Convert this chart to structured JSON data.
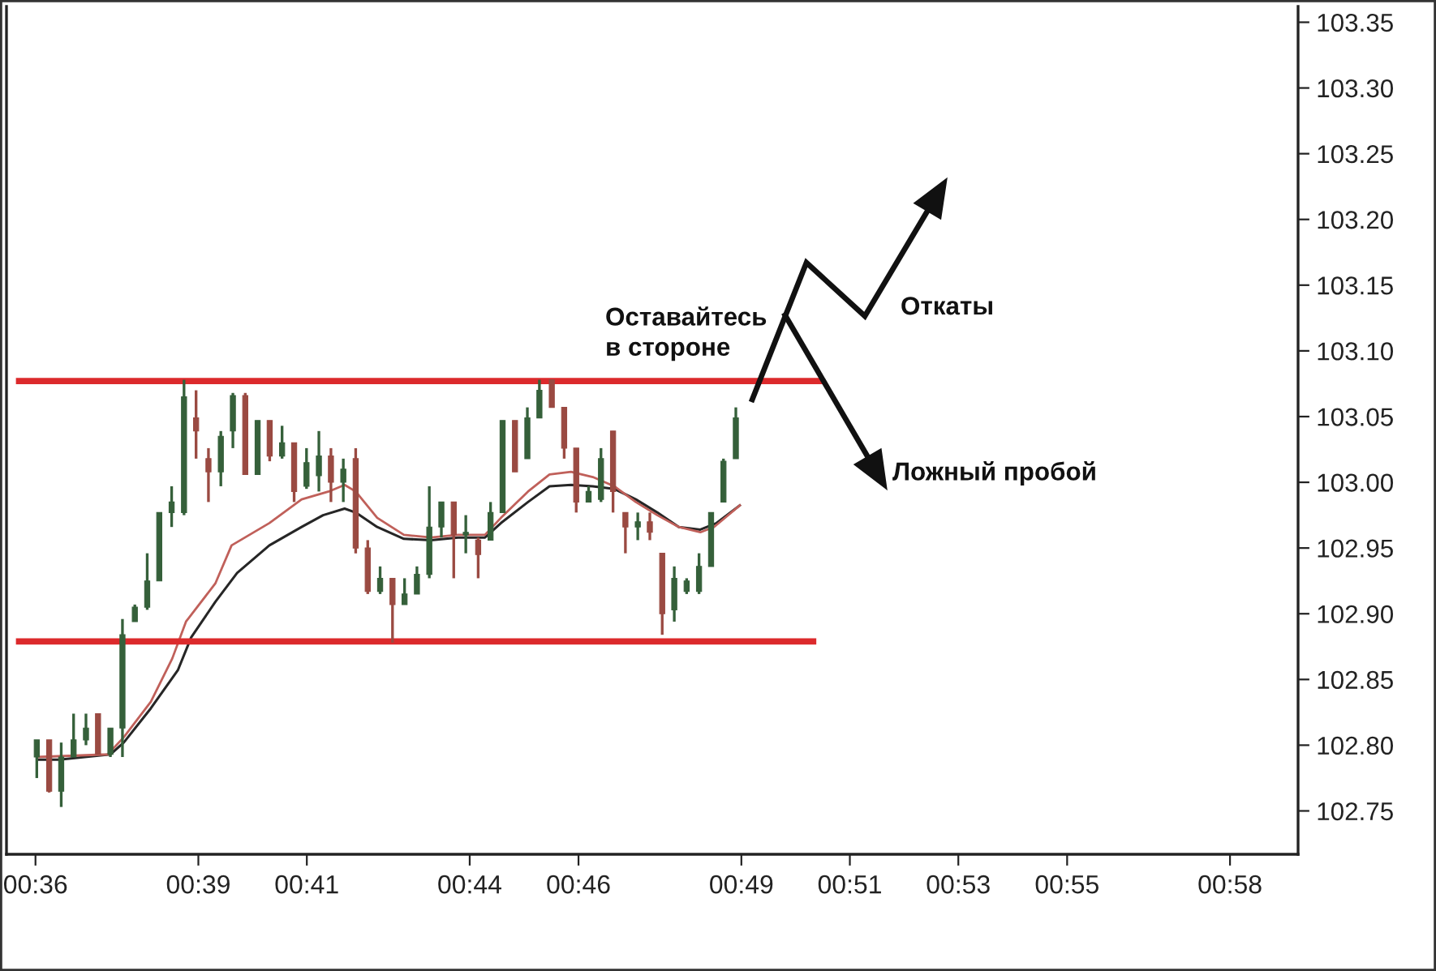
{
  "chart_data": {
    "type": "candlestick",
    "x": [
      0.6004,
      0.6042,
      0.6079,
      0.6117,
      0.6155,
      0.6192,
      0.623,
      0.6267,
      0.6305,
      0.6343,
      0.638,
      0.6418,
      0.6456,
      0.6493,
      0.6531,
      0.6569,
      0.6606,
      0.6644,
      0.6682,
      0.6719,
      0.6757,
      0.6794,
      0.6832,
      0.687,
      0.6907,
      0.6945,
      0.6983,
      0.702,
      0.7058,
      0.7096,
      0.7133,
      0.7171,
      0.7209,
      0.7246,
      0.7284,
      0.7321,
      0.7359,
      0.7397,
      0.7434,
      0.7472,
      0.751,
      0.7547,
      0.7585,
      0.7623,
      0.766,
      0.7698,
      0.7736,
      0.7773,
      0.7811,
      0.7849,
      0.7886,
      0.7924,
      0.7961,
      0.7999,
      0.8037,
      0.8074,
      0.8112,
      0.815
    ],
    "ohlc": [
      [
        102.791,
        102.804,
        102.775,
        102.804
      ],
      [
        102.804,
        102.804,
        102.764,
        102.765
      ],
      [
        102.765,
        102.802,
        102.753,
        102.791
      ],
      [
        102.791,
        102.824,
        102.791,
        102.804
      ],
      [
        102.804,
        102.824,
        102.8,
        102.813
      ],
      [
        102.824,
        102.824,
        102.793,
        102.793
      ],
      [
        102.793,
        102.813,
        102.791,
        102.813
      ],
      [
        102.813,
        102.896,
        102.791,
        102.884
      ],
      [
        102.894,
        102.907,
        102.894,
        102.905
      ],
      [
        102.905,
        102.946,
        102.903,
        102.925
      ],
      [
        102.925,
        102.977,
        102.925,
        102.977
      ],
      [
        102.977,
        102.997,
        102.966,
        102.985
      ],
      [
        102.977,
        103.078,
        102.975,
        103.065
      ],
      [
        103.049,
        103.07,
        103.018,
        103.039
      ],
      [
        103.018,
        103.026,
        102.985,
        103.008
      ],
      [
        103.008,
        103.039,
        102.997,
        103.035
      ],
      [
        103.039,
        103.068,
        103.026,
        103.066
      ],
      [
        103.066,
        103.068,
        103.006,
        103.006
      ],
      [
        103.006,
        103.047,
        103.006,
        103.047
      ],
      [
        103.047,
        103.047,
        103.016,
        103.02
      ],
      [
        103.02,
        103.043,
        103.018,
        103.03
      ],
      [
        103.03,
        103.03,
        102.985,
        102.993
      ],
      [
        102.997,
        103.026,
        102.995,
        103.015
      ],
      [
        103.005,
        103.039,
        102.993,
        103.02
      ],
      [
        103.02,
        103.026,
        102.985,
        103.0
      ],
      [
        103.0,
        103.018,
        102.985,
        103.01
      ],
      [
        103.018,
        103.026,
        102.946,
        102.95
      ],
      [
        102.95,
        102.956,
        102.915,
        102.917
      ],
      [
        102.917,
        102.936,
        102.915,
        102.927
      ],
      [
        102.927,
        102.927,
        102.878,
        102.907
      ],
      [
        102.907,
        102.927,
        102.907,
        102.915
      ],
      [
        102.915,
        102.936,
        102.915,
        102.93
      ],
      [
        102.93,
        102.997,
        102.927,
        102.966
      ],
      [
        102.966,
        102.985,
        102.958,
        102.985
      ],
      [
        102.985,
        102.985,
        102.927,
        102.96
      ],
      [
        102.96,
        102.975,
        102.946,
        102.962
      ],
      [
        102.956,
        102.958,
        102.927,
        102.945
      ],
      [
        102.956,
        102.985,
        102.956,
        102.977
      ],
      [
        102.977,
        103.047,
        102.977,
        103.047
      ],
      [
        103.047,
        103.047,
        103.008,
        103.008
      ],
      [
        103.018,
        103.057,
        103.018,
        103.049
      ],
      [
        103.049,
        103.078,
        103.049,
        103.07
      ],
      [
        103.078,
        103.078,
        103.057,
        103.057
      ],
      [
        103.057,
        103.057,
        103.018,
        103.026
      ],
      [
        103.026,
        103.026,
        102.977,
        102.985
      ],
      [
        102.985,
        102.997,
        102.985,
        102.993
      ],
      [
        102.987,
        103.026,
        102.985,
        103.018
      ],
      [
        103.039,
        103.039,
        102.977,
        102.993
      ],
      [
        102.977,
        102.977,
        102.946,
        102.966
      ],
      [
        102.966,
        102.977,
        102.956,
        102.97
      ],
      [
        102.97,
        102.977,
        102.956,
        102.962
      ],
      [
        102.946,
        102.946,
        102.884,
        102.9
      ],
      [
        102.903,
        102.936,
        102.894,
        102.927
      ],
      [
        102.917,
        102.927,
        102.915,
        102.925
      ],
      [
        102.917,
        102.946,
        102.915,
        102.936
      ],
      [
        102.936,
        102.977,
        102.936,
        102.977
      ],
      [
        102.985,
        103.018,
        102.985,
        103.016
      ],
      [
        103.018,
        103.057,
        103.018,
        103.049
      ]
    ],
    "colors": [
      "#35603a",
      "#9a4a42",
      "#35603a",
      "#35603a",
      "#35603a",
      "#9a4a42",
      "#35603a",
      "#35603a",
      "#35603a",
      "#35603a",
      "#35603a",
      "#35603a",
      "#35603a",
      "#9a4a42",
      "#9a4a42",
      "#35603a",
      "#35603a",
      "#9a4a42",
      "#35603a",
      "#9a4a42",
      "#35603a",
      "#9a4a42",
      "#35603a",
      "#35603a",
      "#9a4a42",
      "#35603a",
      "#9a4a42",
      "#9a4a42",
      "#35603a",
      "#9a4a42",
      "#35603a",
      "#35603a",
      "#35603a",
      "#35603a",
      "#9a4a42",
      "#35603a",
      "#9a4a42",
      "#35603a",
      "#35603a",
      "#9a4a42",
      "#35603a",
      "#35603a",
      "#9a4a42",
      "#9a4a42",
      "#9a4a42",
      "#35603a",
      "#35603a",
      "#9a4a42",
      "#9a4a42",
      "#35603a",
      "#9a4a42",
      "#9a4a42",
      "#35603a",
      "#35603a",
      "#35603a",
      "#35603a",
      "#35603a",
      "#35603a"
    ],
    "series": [
      {
        "type": "line",
        "color": "#262626",
        "x": [
          0.6003,
          0.6073,
          0.623,
          0.6271,
          0.6354,
          0.6437,
          0.6478,
          0.6552,
          0.6619,
          0.6718,
          0.6817,
          0.6883,
          0.6949,
          0.6983,
          0.7049,
          0.7131,
          0.7214,
          0.7297,
          0.738,
          0.7429,
          0.7512,
          0.7578,
          0.7644,
          0.7711,
          0.7777,
          0.7843,
          0.7909,
          0.7975,
          0.8041,
          0.8091,
          0.8165
        ],
        "values": [
          102.789,
          102.789,
          102.793,
          102.802,
          102.828,
          102.857,
          102.882,
          102.909,
          102.931,
          102.952,
          102.966,
          102.975,
          102.98,
          102.977,
          102.966,
          102.957,
          102.956,
          102.958,
          102.958,
          102.969,
          102.985,
          102.997,
          102.998,
          102.997,
          102.995,
          102.987,
          102.977,
          102.966,
          102.964,
          102.969,
          102.983
        ]
      },
      {
        "type": "line",
        "color": "#c0605a",
        "x": [
          0.6003,
          0.6222,
          0.6271,
          0.6354,
          0.642,
          0.6462,
          0.6552,
          0.6602,
          0.6718,
          0.6817,
          0.69,
          0.6949,
          0.6983,
          0.7049,
          0.7131,
          0.7214,
          0.7297,
          0.738,
          0.7429,
          0.7512,
          0.7578,
          0.7644,
          0.7711,
          0.7777,
          0.7843,
          0.7909,
          0.7975,
          0.8041,
          0.8083,
          0.8165
        ],
        "values": [
          102.791,
          102.793,
          102.806,
          102.833,
          102.866,
          102.894,
          102.923,
          102.952,
          102.969,
          102.987,
          102.993,
          102.998,
          102.993,
          102.973,
          102.96,
          102.958,
          102.96,
          102.96,
          102.973,
          102.993,
          103.006,
          103.008,
          103.004,
          102.997,
          102.985,
          102.975,
          102.966,
          102.962,
          102.966,
          102.983
        ]
      },
      {
        "type": "line",
        "color": "#dc2a2c",
        "x": [
          0.594,
          0.8422
        ],
        "values": [
          103.077,
          103.077
        ]
      },
      {
        "type": "line",
        "color": "#dc2a2c",
        "x": [
          0.594,
          0.8397
        ],
        "values": [
          102.879,
          102.879
        ]
      }
    ],
    "xlim": [
      0.5911,
      0.9876
    ],
    "xticks": [
      {
        "value": 0.6,
        "label": "00:36"
      },
      {
        "value": 0.65,
        "label": "00:39"
      },
      {
        "value": 0.6833,
        "label": "00:41"
      },
      {
        "value": 0.7333,
        "label": "00:44"
      },
      {
        "value": 0.7667,
        "label": "00:46"
      },
      {
        "value": 0.8167,
        "label": "00:49"
      },
      {
        "value": 0.85,
        "label": "00:51"
      },
      {
        "value": 0.8833,
        "label": "00:53"
      },
      {
        "value": 0.9167,
        "label": "00:55"
      },
      {
        "value": 0.9667,
        "label": "00:58"
      }
    ],
    "ylim": [
      102.717,
      103.362
    ],
    "yticks": [
      {
        "value": 102.75,
        "label": "102.75"
      },
      {
        "value": 102.8,
        "label": "102.80"
      },
      {
        "value": 102.85,
        "label": "102.85"
      },
      {
        "value": 102.9,
        "label": "102.90"
      },
      {
        "value": 102.95,
        "label": "102.95"
      },
      {
        "value": 103.0,
        "label": "103.00"
      },
      {
        "value": 103.05,
        "label": "103.05"
      },
      {
        "value": 103.1,
        "label": "103.10"
      },
      {
        "value": 103.15,
        "label": "103.15"
      },
      {
        "value": 103.2,
        "label": "103.20"
      },
      {
        "value": 103.25,
        "label": "103.25"
      },
      {
        "value": 103.3,
        "label": "103.30"
      },
      {
        "value": 103.35,
        "label": "103.35"
      }
    ],
    "annotations": [
      "Оставайтесь\nв стороне",
      "Откаты",
      "Ложный пробой"
    ]
  }
}
